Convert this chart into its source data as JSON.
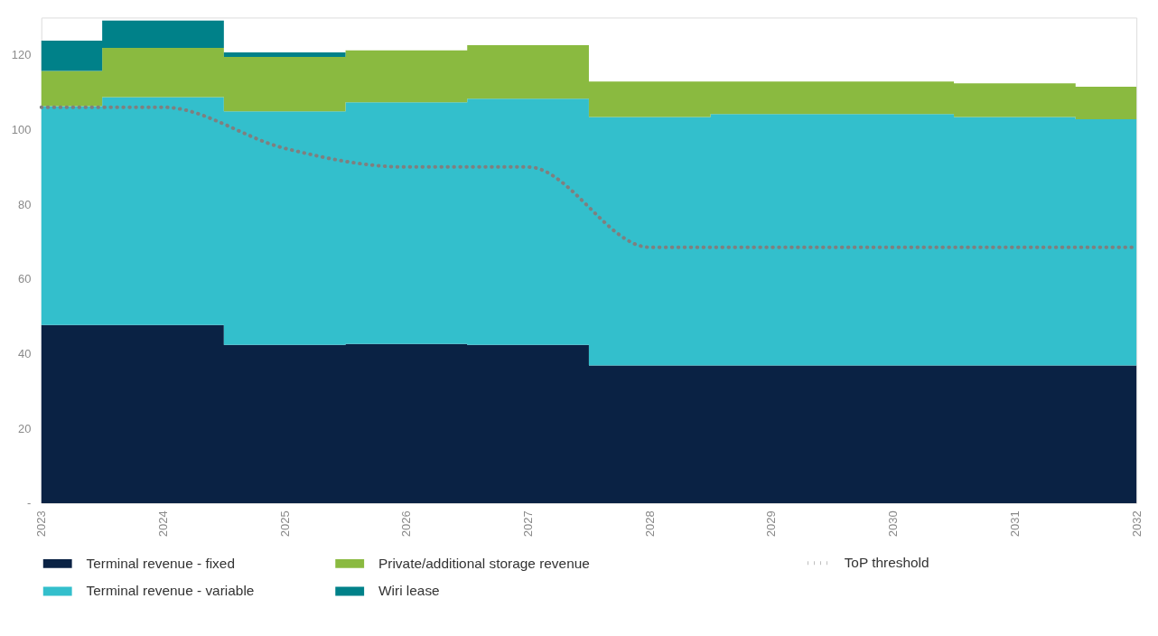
{
  "chart_data": {
    "type": "area",
    "stacked": true,
    "legend": "bottom",
    "grid": false,
    "x": [
      2023,
      2024,
      2025,
      2026,
      2027,
      2028,
      2029,
      2030,
      2031,
      2032
    ],
    "xlim": [
      2023,
      2032
    ],
    "xticks": [
      2023,
      2024,
      2025,
      2026,
      2027,
      2028,
      2029,
      2030,
      2031,
      2032
    ],
    "ylim": [
      0,
      130
    ],
    "yticks": [
      {
        "value": 0,
        "label": "-"
      },
      20,
      40,
      60,
      80,
      100,
      120
    ],
    "series": [
      {
        "name": "Terminal revenue - fixed",
        "color": "#0a2244",
        "values": [
          47.7,
          47.7,
          42.4,
          42.6,
          42.4,
          36.9,
          36.9,
          36.9,
          36.9,
          36.9
        ]
      },
      {
        "name": "Terminal revenue - variable",
        "color": "#33bfcc",
        "values": [
          58.6,
          61.0,
          62.5,
          64.7,
          65.9,
          66.5,
          67.3,
          67.3,
          66.5,
          65.9
        ]
      },
      {
        "name": "Private/additional storage revenue",
        "color": "#8aba40",
        "values": [
          9.4,
          13.2,
          14.6,
          13.9,
          14.3,
          9.5,
          8.7,
          8.7,
          9.0,
          8.7
        ]
      },
      {
        "name": "Wiri lease",
        "color": "#008189",
        "values": [
          8.1,
          7.3,
          1.2,
          0,
          0,
          0,
          0,
          0,
          0,
          0
        ]
      },
      {
        "name": "ToP threshold",
        "type": "line",
        "color": "#7f7f7f",
        "line_style": "dotted",
        "values": [
          106,
          106,
          95,
          90,
          90,
          68.5,
          68.5,
          68.5,
          68.5,
          68.5
        ]
      }
    ]
  }
}
